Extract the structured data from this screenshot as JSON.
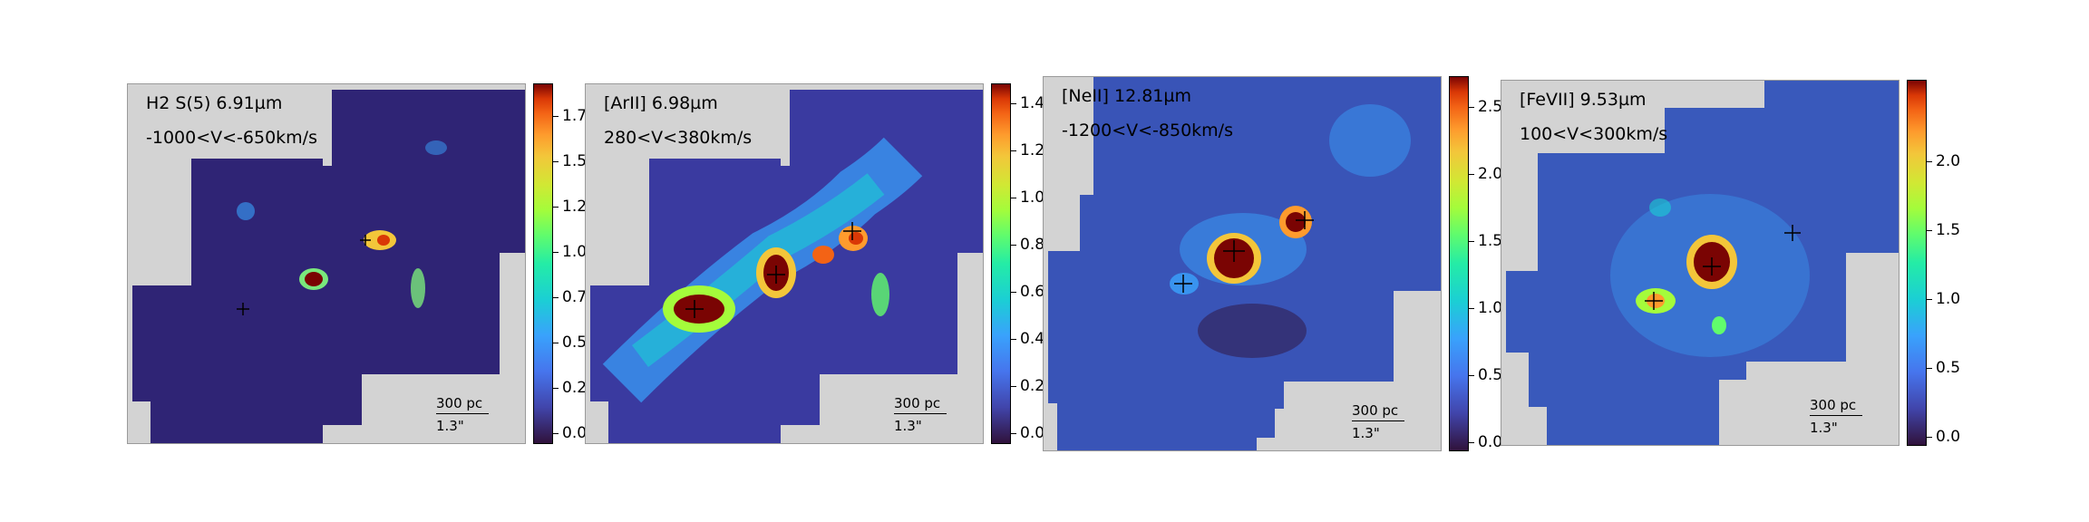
{
  "panels": [
    {
      "line": "H2 S(5)  6.91µm",
      "velocity": "-1000<V<-650km/s",
      "scale_pc": "300 pc",
      "scale_arcsec": "1.3\"",
      "colorbar_ticks": [
        "0.00",
        "0.25",
        "0.50",
        "0.75",
        "1.00",
        "1.25",
        "1.50",
        "1.75"
      ],
      "colorbar_max": 1.95
    },
    {
      "line": "[ArII]  6.98µm",
      "velocity": "280<V<380km/s",
      "scale_pc": "300 pc",
      "scale_arcsec": "1.3\"",
      "colorbar_ticks": [
        "0.0",
        "0.2",
        "0.4",
        "0.6",
        "0.8",
        "1.0",
        "1.2",
        "1.4"
      ],
      "colorbar_max": 1.5
    },
    {
      "line": "[NeII]  12.81µm",
      "velocity": "-1200<V<-850km/s",
      "scale_pc": "300 pc",
      "scale_arcsec": "1.3\"",
      "colorbar_ticks": [
        "0.0",
        "0.5",
        "1.0",
        "1.5",
        "2.0",
        "2.5"
      ],
      "colorbar_max": 2.7
    },
    {
      "line": "[FeVII]  9.53µm",
      "velocity": "100<V<300km/s",
      "scale_pc": "300 pc",
      "scale_arcsec": "1.3\"",
      "colorbar_ticks": [
        "0.0",
        "0.5",
        "1.0",
        "1.5",
        "2.0"
      ],
      "colorbar_max": 2.45
    }
  ],
  "colors": {
    "background_fill": "#d3d3d3",
    "map_low": "#30123b",
    "map_peak": "#7a0403"
  },
  "colormap": "turbo"
}
